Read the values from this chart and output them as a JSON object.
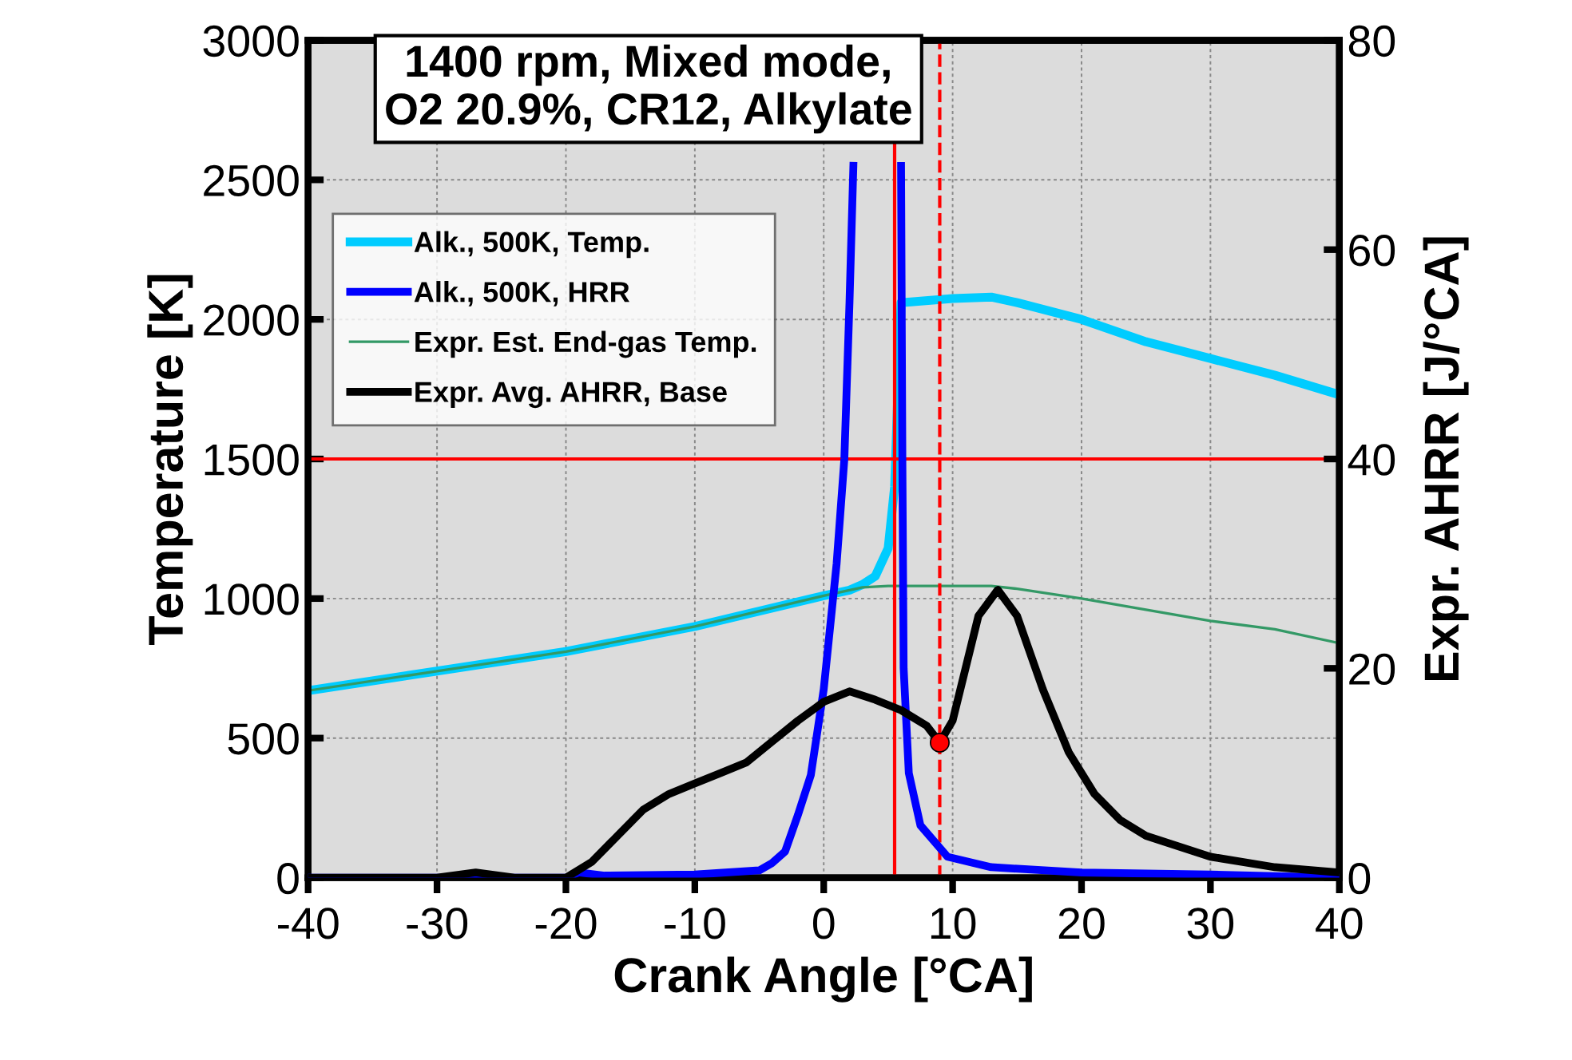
{
  "chart_data": {
    "type": "line",
    "title": "1400 rpm, Mixed mode,\nO2 20.9%, CR12, Alkylate",
    "xlabel": "Crank Angle [°CA]",
    "ylabel": "Temperature [K]",
    "y2label": "Expr. AHRR [J/°CA]",
    "xlim": [
      -40,
      40
    ],
    "xticks": [
      -40,
      -30,
      -20,
      -10,
      0,
      10,
      20,
      30,
      40
    ],
    "ylim": [
      0,
      3000
    ],
    "yticks": [
      0,
      500,
      1000,
      1500,
      2000,
      2500,
      3000
    ],
    "y2lim": [
      0,
      80
    ],
    "y2ticks": [
      0,
      20,
      40,
      60,
      80
    ],
    "grid": true,
    "legend": "top left",
    "line_style": "solid",
    "marker": "none",
    "series": [
      {
        "name": "Alk., 500K, Temp.",
        "color": "#00ccff",
        "x": [
          -40,
          -30,
          -20,
          -10,
          -5,
          0,
          2,
          3,
          4,
          5,
          5.5,
          5.8,
          6,
          10,
          13,
          15,
          20,
          25,
          30,
          35,
          40
        ],
        "values": [
          670,
          740,
          810,
          900,
          955,
          1010,
          1030,
          1050,
          1080,
          1180,
          1400,
          1800,
          2060,
          2075,
          2080,
          2060,
          2000,
          1920,
          1860,
          1800,
          1730
        ]
      },
      {
        "name": "Alk., 500K, HRR",
        "color": "#0000ff",
        "axis": "y2",
        "x": [
          -40,
          -30,
          -20,
          -19,
          -17,
          -10,
          -5,
          -4,
          -3,
          -2,
          -1,
          0,
          1,
          1.6,
          2,
          2.3,
          4,
          6.0,
          6.1,
          6.2,
          6.6,
          7.5,
          9.6,
          13,
          20,
          30,
          40
        ],
        "values": [
          0,
          0,
          0,
          0.5,
          0.2,
          0.3,
          0.7,
          1.4,
          2.5,
          6,
          9.8,
          18,
          30,
          40,
          55,
          68,
          null,
          68,
          40,
          20,
          10,
          5,
          2,
          1,
          0.5,
          0.3,
          0
        ]
      },
      {
        "name": "Expr. Est. End-gas Temp.",
        "color": "#339966",
        "x": [
          -40,
          -30,
          -20,
          -10,
          -5,
          0,
          2,
          3,
          5,
          10,
          13,
          15,
          20,
          25,
          30,
          35,
          40
        ],
        "values": [
          670,
          740,
          810,
          900,
          955,
          1010,
          1030,
          1040,
          1045,
          1045,
          1045,
          1035,
          1000,
          960,
          920,
          890,
          840
        ]
      },
      {
        "name": "Expr. Avg. AHRR, Base",
        "color": "#000000",
        "axis": "y2",
        "x": [
          -40,
          -30,
          -27,
          -24,
          -20,
          -18,
          -16,
          -14,
          -12,
          -10,
          -8,
          -6,
          -4,
          -2,
          0,
          2,
          4,
          6,
          8,
          9,
          10,
          11,
          12,
          13.5,
          15,
          17,
          19,
          21,
          23,
          25,
          28,
          30,
          35,
          40
        ],
        "values": [
          0,
          0,
          0.5,
          0,
          0,
          1.5,
          4,
          6.5,
          8,
          9,
          10,
          11,
          13,
          15,
          16.8,
          17.8,
          17,
          16,
          14.5,
          12.9,
          15,
          20,
          25,
          27.5,
          25,
          18,
          12,
          8,
          5.5,
          4,
          2.8,
          2,
          1,
          0.5
        ]
      },
      {
        "type": "scatter",
        "color": "#ff0000",
        "axis": "y2",
        "marker": "circle",
        "x": [
          9
        ],
        "values": [
          12.9
        ]
      }
    ],
    "ref_lines": [
      {
        "axis": "y",
        "value": 1500,
        "color": "#ff0000",
        "line_style": "solid"
      },
      {
        "axis": "x",
        "value": 5.5,
        "color": "#ff0000",
        "line_style": "solid"
      },
      {
        "axis": "x",
        "value": 9,
        "color": "#ff0000",
        "line_style": "dashed"
      }
    ]
  }
}
